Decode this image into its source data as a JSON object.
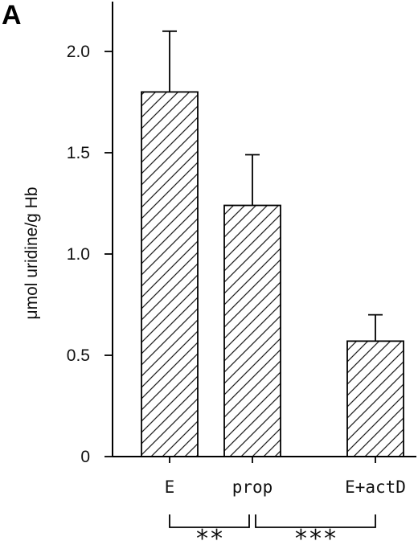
{
  "panel_label": "A",
  "chart_data": {
    "type": "bar",
    "categories": [
      "E",
      "prop",
      "E+actD"
    ],
    "values": [
      1.8,
      1.24,
      0.57
    ],
    "errors": [
      0.3,
      0.25,
      0.13
    ],
    "ylabel": "μmol uridine/g Hb",
    "xlabel": "",
    "ylim": [
      0,
      2.2
    ],
    "yticks": [
      "0",
      "0.5",
      "1.0",
      "1.5",
      "2.0"
    ],
    "bar_pattern": "diagonal-hatch",
    "grid": false,
    "significance": [
      {
        "from": "E",
        "to": "prop",
        "label": "**"
      },
      {
        "from": "prop",
        "to": "E+actD",
        "label": "***"
      }
    ]
  }
}
